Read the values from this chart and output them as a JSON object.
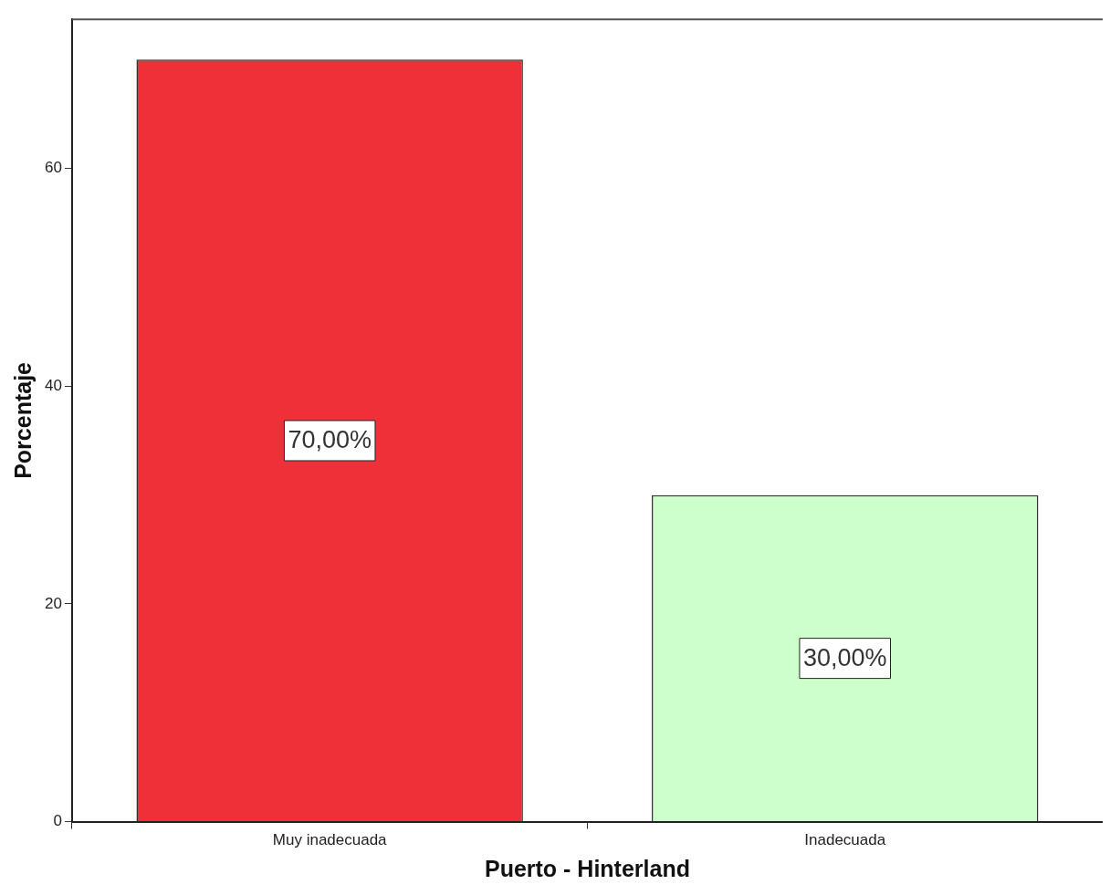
{
  "chart_data": {
    "type": "bar",
    "xlabel": "Puerto - Hinterland",
    "ylabel": "Porcentaje",
    "categories": [
      "Muy inadecuada",
      "Inadecuada"
    ],
    "values": [
      70,
      30
    ],
    "colors": [
      "#ee3039",
      "#ccffcc"
    ],
    "value_labels": [
      "70,00%",
      "30,00%"
    ],
    "ylim": [
      0,
      73.7
    ],
    "yticks": [
      0,
      20,
      40,
      60
    ]
  }
}
